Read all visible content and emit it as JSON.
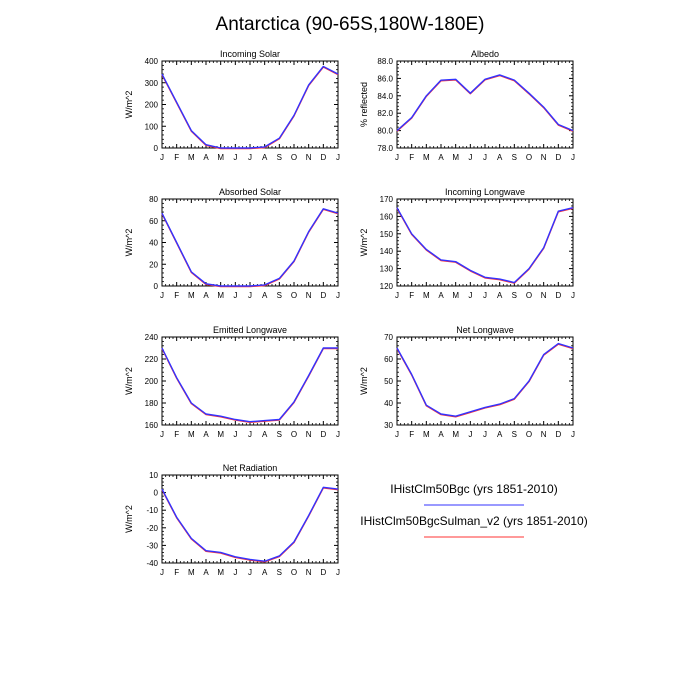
{
  "figure": {
    "title": "Antarctica (90-65S,180W-180E)"
  },
  "legend": {
    "entries": [
      {
        "label": "IHistClm50Bgc (yrs 1851-2010)",
        "color": "#3333ff"
      },
      {
        "label": "IHistClm50BgcSulman_v2 (yrs 1851-2010)",
        "color": "#ff3333"
      }
    ]
  },
  "chart_data": [
    {
      "type": "line",
      "title": "Incoming Solar",
      "ylabel": "W/m^2",
      "categories": [
        "J",
        "F",
        "M",
        "A",
        "M",
        "J",
        "J",
        "A",
        "S",
        "O",
        "N",
        "D",
        "J"
      ],
      "ylim": [
        0,
        400
      ],
      "yticks": [
        0,
        100,
        200,
        300,
        400
      ],
      "ytick_labels": [
        "0",
        "100",
        "200",
        "300",
        "400"
      ],
      "series": [
        {
          "values": [
            340,
            210,
            80,
            15,
            0,
            0,
            0,
            5,
            45,
            150,
            290,
            375,
            340
          ],
          "color": "#3333ff"
        },
        {
          "values": [
            340,
            210,
            80,
            15,
            0,
            0,
            0,
            5,
            45,
            150,
            290,
            375,
            340
          ],
          "color": "#ff3333"
        }
      ]
    },
    {
      "type": "line",
      "title": "Albedo",
      "ylabel": "% reflected",
      "categories": [
        "J",
        "F",
        "M",
        "A",
        "M",
        "J",
        "J",
        "A",
        "S",
        "O",
        "N",
        "D",
        "J"
      ],
      "ylim": [
        78.0,
        88.0
      ],
      "yticks": [
        78,
        80,
        82,
        84,
        86,
        88
      ],
      "ytick_labels": [
        "78.0",
        "80.0",
        "82.0",
        "84.0",
        "86.0",
        "88.0"
      ],
      "series": [
        {
          "values": [
            80.0,
            81.5,
            84.0,
            85.8,
            85.9,
            84.3,
            85.9,
            86.4,
            85.8,
            84.3,
            82.7,
            80.7,
            80.0
          ],
          "color": "#3333ff"
        },
        {
          "values": [
            80.0,
            81.5,
            84.0,
            85.8,
            85.9,
            84.3,
            85.9,
            86.4,
            85.8,
            84.3,
            82.7,
            80.7,
            80.0
          ],
          "color": "#ff3333"
        }
      ]
    },
    {
      "type": "line",
      "title": "Absorbed Solar",
      "ylabel": "W/m^2",
      "categories": [
        "J",
        "F",
        "M",
        "A",
        "M",
        "J",
        "J",
        "A",
        "S",
        "O",
        "N",
        "D",
        "J"
      ],
      "ylim": [
        0,
        80
      ],
      "yticks": [
        0,
        20,
        40,
        60,
        80
      ],
      "ytick_labels": [
        "0",
        "20",
        "40",
        "60",
        "80"
      ],
      "series": [
        {
          "values": [
            67,
            40,
            13,
            2,
            0,
            0,
            0,
            1,
            7,
            23,
            50,
            71,
            67
          ],
          "color": "#3333ff"
        },
        {
          "values": [
            67,
            40,
            13,
            2,
            0,
            0,
            0,
            1,
            7,
            23,
            50,
            71,
            67
          ],
          "color": "#ff3333"
        }
      ]
    },
    {
      "type": "line",
      "title": "Incoming Longwave",
      "ylabel": "W/m^2",
      "categories": [
        "J",
        "F",
        "M",
        "A",
        "M",
        "J",
        "J",
        "A",
        "S",
        "O",
        "N",
        "D",
        "J"
      ],
      "ylim": [
        120,
        170
      ],
      "yticks": [
        120,
        130,
        140,
        150,
        160,
        170
      ],
      "ytick_labels": [
        "120",
        "130",
        "140",
        "150",
        "160",
        "170"
      ],
      "series": [
        {
          "values": [
            165,
            150,
            141,
            135,
            134,
            129,
            125,
            124,
            122,
            130,
            142,
            163,
            165
          ],
          "color": "#3333ff"
        },
        {
          "values": [
            165,
            150,
            141,
            135,
            134,
            129,
            125,
            124,
            122,
            130,
            142,
            163,
            165
          ],
          "color": "#ff3333"
        }
      ]
    },
    {
      "type": "line",
      "title": "Emitted Longwave",
      "ylabel": "W/m^2",
      "categories": [
        "J",
        "F",
        "M",
        "A",
        "M",
        "J",
        "J",
        "A",
        "S",
        "O",
        "N",
        "D",
        "J"
      ],
      "ylim": [
        160,
        240
      ],
      "yticks": [
        160,
        180,
        200,
        220,
        240
      ],
      "ytick_labels": [
        "160",
        "180",
        "200",
        "220",
        "240"
      ],
      "series": [
        {
          "values": [
            230,
            203,
            180,
            170,
            168,
            165,
            163,
            164,
            165,
            181,
            205,
            230,
            230
          ],
          "color": "#3333ff"
        },
        {
          "values": [
            230,
            203,
            180,
            170,
            168,
            165,
            163,
            164,
            165,
            181,
            205,
            230,
            230
          ],
          "color": "#ff3333"
        }
      ]
    },
    {
      "type": "line",
      "title": "Net Longwave",
      "ylabel": "W/m^2",
      "categories": [
        "J",
        "F",
        "M",
        "A",
        "M",
        "J",
        "J",
        "A",
        "S",
        "O",
        "N",
        "D",
        "J"
      ],
      "ylim": [
        30,
        70
      ],
      "yticks": [
        30,
        40,
        50,
        60,
        70
      ],
      "ytick_labels": [
        "30",
        "40",
        "50",
        "60",
        "70"
      ],
      "series": [
        {
          "values": [
            65,
            53,
            39,
            35,
            34,
            36,
            38,
            39.5,
            42,
            50,
            62,
            67,
            65
          ],
          "color": "#3333ff"
        },
        {
          "values": [
            65,
            53,
            39,
            35,
            34,
            36,
            38,
            39.5,
            42,
            50,
            62,
            67,
            65
          ],
          "color": "#ff3333"
        }
      ]
    },
    {
      "type": "line",
      "title": "Net Radiation",
      "ylabel": "W/m^2",
      "categories": [
        "J",
        "F",
        "M",
        "A",
        "M",
        "J",
        "J",
        "A",
        "S",
        "O",
        "N",
        "D",
        "J"
      ],
      "ylim": [
        -40,
        10
      ],
      "yticks": [
        -40,
        -30,
        -20,
        -10,
        0,
        10
      ],
      "ytick_labels": [
        "-40",
        "-30",
        "-20",
        "-10",
        "0",
        "10"
      ],
      "series": [
        {
          "values": [
            2,
            -14,
            -26,
            -33,
            -34,
            -36.5,
            -38,
            -39,
            -36,
            -28,
            -13,
            3,
            2
          ],
          "color": "#3333ff"
        },
        {
          "values": [
            2,
            -14,
            -26,
            -33,
            -34,
            -36.5,
            -38,
            -39,
            -36,
            -28,
            -13,
            3,
            2
          ],
          "color": "#ff3333"
        }
      ]
    }
  ]
}
